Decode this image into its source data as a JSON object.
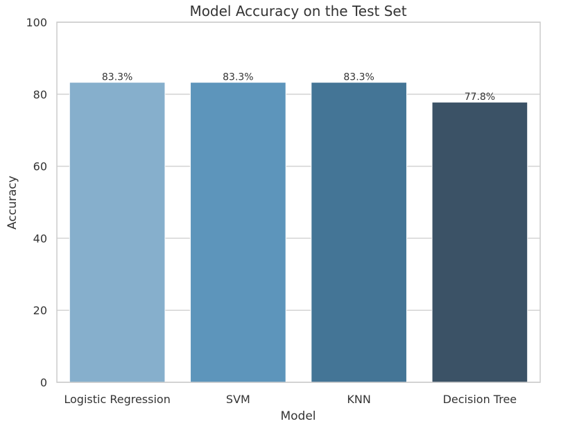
{
  "chart_data": {
    "type": "bar",
    "title": "Model Accuracy on the Test Set",
    "xlabel": "Model",
    "ylabel": "Accuracy",
    "categories": [
      "Logistic Regression",
      "SVM",
      "KNN",
      "Decision Tree"
    ],
    "values": [
      83.3,
      83.3,
      83.3,
      77.8
    ],
    "value_labels": [
      "83.3%",
      "83.3%",
      "83.3%",
      "77.8%"
    ],
    "ylim": [
      0,
      100
    ],
    "yticks": [
      0,
      20,
      40,
      60,
      80,
      100
    ],
    "grid": true,
    "legend": "none",
    "colors": {
      "bars": [
        "#86afcc",
        "#5d95bb",
        "#447596",
        "#3b5266"
      ],
      "grid": "#d3d3d3",
      "frame": "#cccccc",
      "text": "#333333",
      "background": "#ffffff"
    }
  }
}
